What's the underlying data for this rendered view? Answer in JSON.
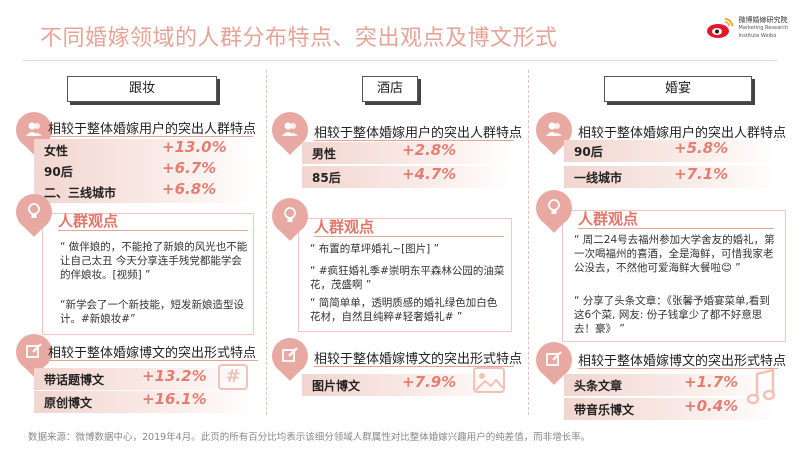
{
  "title": "不同婚嫁领域的人群分布特点、突出观点及博文形式",
  "logo": {
    "line1": "微博婚嫁研究院",
    "line2": "Marketing Research",
    "line3": "Institute Weibo"
  },
  "columns": [
    {
      "name": "跟妆",
      "crowd_title": "相较于整体婚嫁用户的突出人群特点",
      "crowd": [
        {
          "label": "女性",
          "value": "+13.0%"
        },
        {
          "label": "90后",
          "value": "+6.7%"
        },
        {
          "label": "二、三线城市",
          "value": "+6.8%"
        }
      ],
      "view_title": "人群观点",
      "quotes": [
        "“ 做伴娘的，不能抢了新娘的风光也不能让自己太丑 今天分享连手残党都能学会的伴娘妆。[视频] ”",
        "“新学会了一个新技能，短发新娘造型设计。#新娘妆#”"
      ],
      "form_title": "相较于整体婚嫁博文的突出形式特点",
      "forms": [
        {
          "label": "带话题博文",
          "value": "+13.2%"
        },
        {
          "label": "原创博文",
          "value": "+16.1%"
        }
      ]
    },
    {
      "name": "酒店",
      "crowd_title": "相较于整体婚嫁用户的突出人群特点",
      "crowd": [
        {
          "label": "男性",
          "value": "+2.8%"
        },
        {
          "label": "85后",
          "value": "+4.7%"
        }
      ],
      "view_title": "人群观点",
      "quotes": [
        "“ 布置的草坪婚礼~[图片] ”",
        "“ #疯狂婚礼季#崇明东平森林公园的油菜花，茂盛啊 ”",
        "“ 简简单单，透明质感的婚礼绿色加白色花材，自然且纯粹#轻奢婚礼# ”"
      ],
      "form_title": "相较于整体婚嫁博文的突出形式特点",
      "forms": [
        {
          "label": "图片博文",
          "value": "+7.9%"
        }
      ]
    },
    {
      "name": "婚宴",
      "crowd_title": "相较于整体婚嫁用户的突出人群特点",
      "crowd": [
        {
          "label": "90后",
          "value": "+5.8%"
        },
        {
          "label": "一线城市",
          "value": "+7.1%"
        }
      ],
      "view_title": "人群观点",
      "quotes": [
        "“ 周二24号去福州参加大学舍友的婚礼，第一次喝福州的喜酒，全是海鲜，可惜我家老公没去，不然他可爱海鲜大餐啦😊 ”",
        "“ 分享了头条文章：《张馨予婚宴菜单,看到这6个菜, 网友: 份子钱拿少了都不好意思去！豪》 ”"
      ],
      "form_title": "相较于整体婚嫁博文的突出形式特点",
      "forms": [
        {
          "label": "头条文章",
          "value": "+1.7%"
        },
        {
          "label": "带音乐博文",
          "value": "+0.4%"
        }
      ]
    }
  ],
  "decor": {
    "hash": "#"
  },
  "footer": "数据来源：微博数据中心，2019年4月。此页的所有百分比均表示该细分领域人群属性对比整体婚嫁兴趣用户的纯差值，而非增长率。"
}
